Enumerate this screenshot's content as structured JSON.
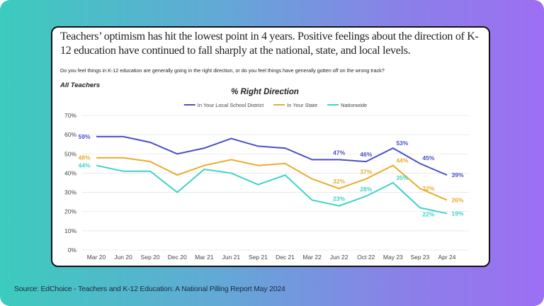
{
  "headline": "Teachers’ optimism has hit the lowest point in 4 years. Positive feelings about the direction of K-12 education have continued to fall sharply at the national, state, and local levels.",
  "question": "Do you feel things in K-12 education are generally going in the right direction, or do you feel things have generally gotten off on the wrong track?",
  "group_label": "All Teachers",
  "source": "Source: EdChoice - Teachers and K-12 Education: A National Pilling Report May 2024",
  "chart_data": {
    "type": "line",
    "title": "% Right Direction",
    "xlabel": "",
    "ylabel": "",
    "categories": [
      "Mar 20",
      "Jun 20",
      "Sep 20",
      "Dec 20",
      "Mar 21",
      "Jun 21",
      "Sep 21",
      "Dec 21",
      "Mar 22",
      "Jun 22",
      "Oct 22",
      "May 23",
      "Sep 23",
      "Apr 24"
    ],
    "ylim": [
      0,
      70
    ],
    "yticks": [
      "0%",
      "10%",
      "20%",
      "30%",
      "40%",
      "50%",
      "60%",
      "70%"
    ],
    "grid": true,
    "legend_placement": "top",
    "series": [
      {
        "name": "In Your Local School District",
        "color": "#4b4fc4",
        "values": [
          59,
          59,
          56,
          50,
          53,
          58,
          54,
          53,
          47,
          47,
          46,
          53,
          45,
          39
        ],
        "labeled_indices": [
          0,
          9,
          10,
          11,
          12,
          13
        ]
      },
      {
        "name": "In Your State",
        "color": "#e6ad2e",
        "values": [
          48,
          48,
          46,
          39,
          44,
          47,
          44,
          45,
          37,
          32,
          37,
          44,
          32,
          26
        ],
        "labeled_indices": [
          0,
          9,
          10,
          11,
          12,
          13
        ]
      },
      {
        "name": "Nationwide",
        "color": "#3fd3c6",
        "values": [
          44,
          41,
          41,
          30,
          42,
          40,
          34,
          39,
          26,
          23,
          28,
          35,
          22,
          19
        ],
        "labeled_indices": [
          0,
          9,
          10,
          11,
          12,
          13
        ]
      }
    ]
  }
}
